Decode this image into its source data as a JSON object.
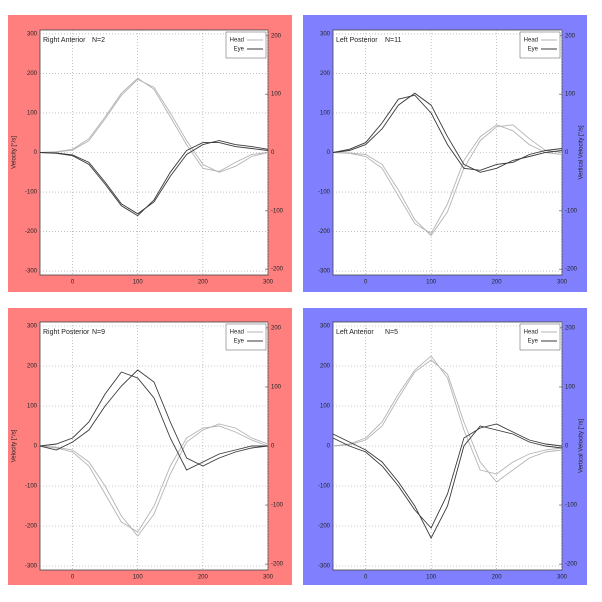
{
  "chart_data": [
    {
      "type": "line",
      "title": "Right Anterior",
      "annotation": "N=2",
      "title_color": "#e00000",
      "background": "#ff7f7f",
      "ylabel": "Velocity [°/s]",
      "x": [
        -50,
        -25,
        0,
        25,
        50,
        75,
        100,
        125,
        150,
        175,
        200,
        225,
        250,
        275,
        300
      ],
      "xlim": [
        -50,
        300
      ],
      "xticks": [
        0,
        100,
        200,
        300
      ],
      "ylim": [
        -310,
        310
      ],
      "yticks": [
        -300,
        -200,
        -100,
        0,
        100,
        200,
        300
      ],
      "y2lim": [
        -210,
        210
      ],
      "y2ticks": [
        -200,
        -100,
        0,
        100,
        200
      ],
      "grid": true,
      "legend": "upper right",
      "series": [
        {
          "name": "Head",
          "color": "#b4b4b4",
          "values": [
            [
              0,
              2,
              8,
              35,
              90,
              150,
              188,
              160,
              90,
              20,
              -40,
              -48,
              -25,
              -5,
              0
            ],
            [
              0,
              1,
              6,
              30,
              85,
              145,
              185,
              165,
              100,
              30,
              -30,
              -50,
              -35,
              -10,
              0
            ]
          ]
        },
        {
          "name": "Eye",
          "color": "#3a3a3a",
          "values": [
            [
              0,
              -2,
              -8,
              -30,
              -80,
              -135,
              -160,
              -120,
              -50,
              5,
              25,
              25,
              15,
              10,
              5
            ],
            [
              0,
              -1,
              -6,
              -25,
              -75,
              -130,
              -155,
              -125,
              -60,
              -5,
              20,
              30,
              20,
              15,
              8
            ]
          ]
        }
      ]
    },
    {
      "type": "line",
      "title": "Left Posterior",
      "annotation": "N=11",
      "title_color": "#2020e0",
      "background": "#8080ff",
      "y2label": "Vertical Velocity [°/s]",
      "x": [
        -50,
        -25,
        0,
        25,
        50,
        75,
        100,
        125,
        150,
        175,
        200,
        225,
        250,
        275,
        300
      ],
      "xlim": [
        -50,
        300
      ],
      "xticks": [
        0,
        100,
        200,
        300
      ],
      "ylim": [
        -310,
        310
      ],
      "yticks": [
        -300,
        -200,
        -100,
        0,
        100,
        200,
        300
      ],
      "y2lim": [
        -210,
        210
      ],
      "y2ticks": [
        -200,
        -100,
        0,
        100,
        200
      ],
      "grid": true,
      "legend": "upper right",
      "series": [
        {
          "name": "Head",
          "color": "#b4b4b4",
          "values": [
            [
              0,
              -2,
              -10,
              -40,
              -110,
              -180,
              -205,
              -130,
              -20,
              40,
              70,
              55,
              20,
              0,
              -5
            ],
            [
              0,
              -1,
              -5,
              -30,
              -95,
              -170,
              -210,
              -150,
              -40,
              30,
              65,
              70,
              35,
              5,
              0
            ]
          ]
        },
        {
          "name": "Eye",
          "color": "#3a3a3a",
          "values": [
            [
              0,
              5,
              20,
              60,
              120,
              150,
              120,
              40,
              -30,
              -50,
              -40,
              -20,
              -10,
              0,
              5
            ],
            [
              0,
              8,
              25,
              75,
              135,
              145,
              100,
              20,
              -40,
              -45,
              -30,
              -25,
              -5,
              5,
              10
            ]
          ]
        }
      ]
    },
    {
      "type": "line",
      "title": "Right Posterior",
      "annotation": "N=9",
      "title_color": "#e00000",
      "background": "#ff7f7f",
      "ylabel": "Velocity [°/s]",
      "x": [
        -50,
        -25,
        0,
        25,
        50,
        75,
        100,
        125,
        150,
        175,
        200,
        225,
        250,
        275,
        300
      ],
      "xlim": [
        -50,
        300
      ],
      "xticks": [
        0,
        100,
        200,
        300
      ],
      "ylim": [
        -310,
        310
      ],
      "yticks": [
        -300,
        -200,
        -100,
        0,
        100,
        200,
        300
      ],
      "y2lim": [
        -210,
        210
      ],
      "y2ticks": [
        -200,
        -100,
        0,
        100,
        200
      ],
      "grid": true,
      "legend": "upper right",
      "series": [
        {
          "name": "Head",
          "color": "#b4b4b4",
          "values": [
            [
              0,
              -5,
              -15,
              -50,
              -120,
              -190,
              -215,
              -150,
              -50,
              20,
              45,
              50,
              35,
              15,
              0
            ],
            [
              0,
              -3,
              -10,
              -40,
              -100,
              -175,
              -225,
              -170,
              -70,
              10,
              40,
              55,
              45,
              20,
              5
            ]
          ]
        },
        {
          "name": "Eye",
          "color": "#3a3a3a",
          "values": [
            [
              0,
              5,
              20,
              60,
              130,
              185,
              170,
              120,
              20,
              -60,
              -40,
              -20,
              -10,
              0,
              0
            ],
            [
              0,
              -10,
              10,
              40,
              100,
              150,
              190,
              160,
              60,
              -30,
              -50,
              -30,
              -15,
              -5,
              0
            ]
          ]
        }
      ]
    },
    {
      "type": "line",
      "title": "Left Anterior",
      "annotation": "N=5",
      "title_color": "#2020e0",
      "background": "#8080ff",
      "y2label": "Vertical Velocity [°/s]",
      "x": [
        -50,
        -25,
        0,
        25,
        50,
        75,
        100,
        125,
        150,
        175,
        200,
        225,
        250,
        275,
        300
      ],
      "xlim": [
        -50,
        300
      ],
      "xticks": [
        0,
        100,
        200,
        300
      ],
      "ylim": [
        -310,
        310
      ],
      "yticks": [
        -300,
        -200,
        -100,
        0,
        100,
        200,
        300
      ],
      "y2lim": [
        -210,
        210
      ],
      "y2ticks": [
        -200,
        -100,
        0,
        100,
        200
      ],
      "grid": true,
      "legend": "upper right",
      "series": [
        {
          "name": "Head",
          "color": "#b4b4b4",
          "values": [
            [
              0,
              5,
              20,
              60,
              130,
              190,
              225,
              170,
              40,
              -60,
              -70,
              -40,
              -20,
              -10,
              -5
            ],
            [
              0,
              3,
              15,
              50,
              120,
              185,
              215,
              180,
              60,
              -40,
              -90,
              -60,
              -30,
              -15,
              -10
            ]
          ]
        },
        {
          "name": "Eye",
          "color": "#3a3a3a",
          "values": [
            [
              30,
              10,
              -10,
              -40,
              -90,
              -150,
              -230,
              -150,
              0,
              50,
              40,
              30,
              10,
              0,
              -5
            ],
            [
              20,
              0,
              -15,
              -50,
              -100,
              -160,
              -205,
              -120,
              20,
              45,
              55,
              35,
              15,
              5,
              0
            ]
          ]
        }
      ]
    }
  ]
}
